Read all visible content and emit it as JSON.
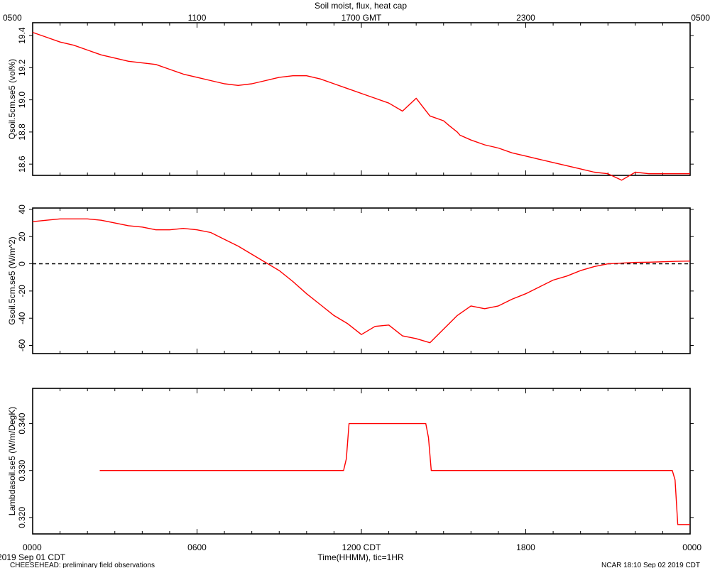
{
  "chart_data": {
    "type": "line",
    "title": "Soil moist, flux, heat cap",
    "top_axis_labels": [
      "0500",
      "1100",
      "1700 GMT",
      "2300",
      "0500"
    ],
    "bottom_axis_labels": [
      "0000",
      "0600",
      "1200 CDT",
      "1800",
      "0000"
    ],
    "xlabel": "Time(HHMM), tic=1HR",
    "date_left": "2019 Sep 01 CDT",
    "footer_left": "CHEESEHEAD: preliminary field observations",
    "footer_right": "NCAR 18:10 Sep 02 2019 CDT",
    "xlim": [
      0,
      24
    ],
    "line_color": "#ff0000",
    "panels": [
      {
        "ylabel": "Qsoil.5cm.se5 (vol%)",
        "ylim": [
          18.53,
          19.48
        ],
        "yticks": [
          18.6,
          18.8,
          19.0,
          19.2,
          19.4
        ],
        "ytick_labels": [
          "18.6",
          "18.8",
          "19.0",
          "19.2",
          "19.4"
        ],
        "zero_line": false,
        "series": {
          "x": [
            0,
            0.5,
            1,
            1.5,
            2,
            2.5,
            3,
            3.5,
            4,
            4.5,
            5,
            5.5,
            6,
            6.5,
            7,
            7.5,
            8,
            8.5,
            9,
            9.5,
            10,
            10.5,
            11,
            11.5,
            12,
            12.5,
            13,
            13.5,
            14,
            14.5,
            15,
            15.2,
            15.35,
            15.5,
            15.6,
            16,
            16.5,
            17,
            17.5,
            18,
            18.5,
            19,
            19.5,
            20,
            20.5,
            21,
            21.5,
            22,
            22.5,
            23,
            23.5,
            24
          ],
          "y": [
            19.42,
            19.39,
            19.36,
            19.34,
            19.31,
            19.28,
            19.26,
            19.24,
            19.23,
            19.22,
            19.19,
            19.16,
            19.14,
            19.12,
            19.1,
            19.09,
            19.1,
            19.12,
            19.14,
            19.15,
            19.15,
            19.13,
            19.1,
            19.07,
            19.04,
            19.01,
            18.98,
            18.93,
            19.01,
            18.9,
            18.87,
            18.84,
            18.82,
            18.8,
            18.78,
            18.75,
            18.72,
            18.7,
            18.67,
            18.65,
            18.63,
            18.61,
            18.59,
            18.57,
            18.55,
            18.54,
            18.5,
            18.55,
            18.54,
            18.54,
            18.54,
            18.54
          ]
        }
      },
      {
        "ylabel": "Gsoil.5cm.se5 (W/m^2)",
        "ylim": [
          -66,
          41
        ],
        "yticks": [
          -60,
          -40,
          -20,
          0,
          20,
          40
        ],
        "ytick_labels": [
          "-60",
          "-40",
          "-20",
          "0",
          "20",
          "40"
        ],
        "zero_line": true,
        "series": {
          "x": [
            0,
            0.5,
            1,
            1.5,
            2,
            2.5,
            3,
            3.5,
            4,
            4.5,
            5,
            5.5,
            6,
            6.5,
            7,
            7.5,
            8,
            8.5,
            9,
            9.5,
            10,
            10.5,
            11,
            11.5,
            12,
            12.5,
            13,
            13.5,
            14,
            14.5,
            15,
            15.5,
            16,
            16.5,
            17,
            17.5,
            18,
            18.5,
            19,
            19.5,
            20,
            20.5,
            21,
            21.5,
            22,
            22.5,
            23,
            23.5,
            24
          ],
          "y": [
            31,
            32,
            33,
            33,
            33,
            32,
            30,
            28,
            27,
            25,
            25,
            26,
            25,
            23,
            18,
            13,
            7,
            1,
            -5,
            -13,
            -22,
            -30,
            -38,
            -44,
            -52,
            -46,
            -45,
            -53,
            -55,
            -58,
            -48,
            -38,
            -31,
            -33,
            -31,
            -26,
            -22,
            -17,
            -12,
            -9,
            -5,
            -2,
            0,
            0.5,
            1,
            1.2,
            1.5,
            1.8,
            2
          ]
        }
      },
      {
        "ylabel": "Lambdasoil.se5 (W/m/DegK)",
        "ylim": [
          0.3165,
          0.3475
        ],
        "yticks": [
          0.32,
          0.33,
          0.34
        ],
        "ytick_labels": [
          "0.320",
          "0.330",
          "0.340"
        ],
        "zero_line": false,
        "series": {
          "x": [
            2.45,
            11.35,
            11.45,
            11.55,
            14.35,
            14.45,
            14.55,
            23.35,
            23.45,
            23.55,
            24
          ],
          "y": [
            0.33,
            0.33,
            0.3325,
            0.34,
            0.34,
            0.337,
            0.33,
            0.33,
            0.328,
            0.3185,
            0.3185
          ]
        }
      }
    ]
  }
}
